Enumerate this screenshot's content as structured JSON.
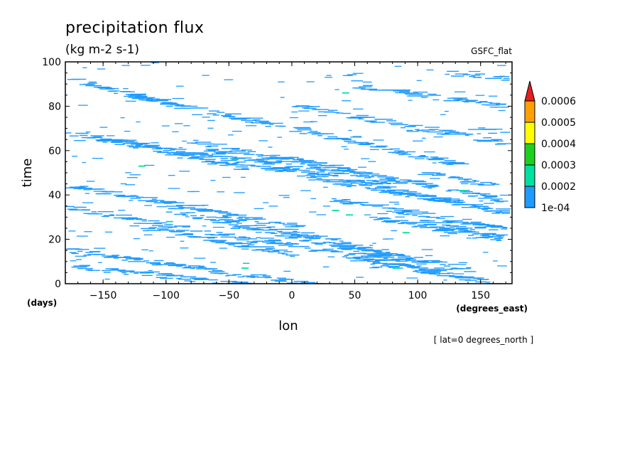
{
  "chart_data": {
    "type": "heatmap",
    "title": "precipitation flux",
    "units": "(kg m-2 s-1)",
    "model_label": "GSFC_flat",
    "xlabel": "lon",
    "x_units": "(degrees_east)",
    "ylabel": "time",
    "y_units": "(days)",
    "xlim": [
      -180,
      175
    ],
    "ylim": [
      0,
      100
    ],
    "x_ticks": [
      -150,
      -100,
      -50,
      0,
      50,
      100,
      150
    ],
    "y_ticks": [
      0,
      20,
      40,
      60,
      80,
      100
    ],
    "x_tick_labels": [
      "−150",
      "−100",
      "−50",
      "0",
      "50",
      "100",
      "150"
    ],
    "y_tick_labels": [
      "0",
      "20",
      "40",
      "60",
      "80",
      "100"
    ],
    "footnote": "[ lat=0 degrees_north ]",
    "colorbar": {
      "levels": [
        0.0001,
        0.0002,
        0.0003,
        0.0004,
        0.0005,
        0.0006
      ],
      "labels": [
        "1e-04",
        "0.0002",
        "0.0003",
        "0.0004",
        "0.0005",
        "0.0006"
      ],
      "colors": [
        "#1e9bff",
        "#00e0a0",
        "#1ed01e",
        "#ffff00",
        "#ffa000",
        "#e61e1e"
      ]
    },
    "bands": [
      {
        "lon": -180,
        "time": 92,
        "slope": -0.14,
        "len": 90,
        "color": "#1e9bff"
      },
      {
        "lon": -180,
        "time": 68,
        "slope": -0.1,
        "len": 200,
        "color": "#1e9bff"
      },
      {
        "lon": -160,
        "time": 66,
        "slope": -0.12,
        "len": 120,
        "color": "#1e9bff"
      },
      {
        "lon": -130,
        "time": 85,
        "slope": -0.12,
        "len": 260,
        "color": "#1e9bff"
      },
      {
        "lon": -80,
        "time": 64,
        "slope": -0.12,
        "len": 160,
        "color": "#1e9bff"
      },
      {
        "lon": -70,
        "time": 60,
        "slope": -0.12,
        "len": 240,
        "color": "#1e9bff"
      },
      {
        "lon": -20,
        "time": 58,
        "slope": -0.11,
        "len": 200,
        "color": "#1e9bff"
      },
      {
        "lon": 0,
        "time": 80,
        "slope": -0.1,
        "len": 175,
        "color": "#1e9bff"
      },
      {
        "lon": 50,
        "time": 89,
        "slope": -0.08,
        "len": 125,
        "color": "#1e9bff"
      },
      {
        "lon": -180,
        "time": 44,
        "slope": -0.1,
        "len": 180,
        "color": "#1e9bff"
      },
      {
        "lon": -180,
        "time": 34,
        "slope": -0.1,
        "len": 150,
        "color": "#1e9bff"
      },
      {
        "lon": -100,
        "time": 33,
        "slope": -0.12,
        "len": 200,
        "color": "#1e9bff"
      },
      {
        "lon": -180,
        "time": 15,
        "slope": -0.08,
        "len": 260,
        "color": "#1e9bff"
      },
      {
        "lon": -180,
        "time": 8,
        "slope": -0.06,
        "len": 140,
        "color": "#1e9bff"
      },
      {
        "lon": -60,
        "time": 30,
        "slope": -0.12,
        "len": 200,
        "color": "#1e9bff"
      },
      {
        "lon": 10,
        "time": 48,
        "slope": -0.1,
        "len": 165,
        "color": "#1e9bff"
      },
      {
        "lon": 30,
        "time": 38,
        "slope": -0.1,
        "len": 145,
        "color": "#1e9bff"
      },
      {
        "lon": 60,
        "time": 30,
        "slope": -0.1,
        "len": 115,
        "color": "#1e9bff"
      },
      {
        "lon": 100,
        "time": 28,
        "slope": -0.11,
        "len": 75,
        "color": "#1e9bff"
      },
      {
        "lon": -30,
        "time": 20,
        "slope": -0.1,
        "len": 150,
        "color": "#1e9bff"
      },
      {
        "lon": 40,
        "time": 12,
        "slope": -0.1,
        "len": 135,
        "color": "#1e9bff"
      },
      {
        "lon": -120,
        "time": 25,
        "slope": -0.1,
        "len": 120,
        "color": "#1e9bff"
      },
      {
        "lon": 100,
        "time": 50,
        "slope": -0.1,
        "len": 75,
        "color": "#1e9bff"
      },
      {
        "lon": 140,
        "time": 70,
        "slope": -0.1,
        "len": 35,
        "color": "#1e9bff"
      },
      {
        "lon": 120,
        "time": 95,
        "slope": -0.05,
        "len": 55,
        "color": "#1e9bff"
      }
    ],
    "hot_spots": [
      {
        "lon": -122,
        "time": 53,
        "color": "#00e0a0"
      },
      {
        "lon": -48,
        "time": 56,
        "color": "#00e0a0"
      },
      {
        "lon": 43,
        "time": 31,
        "color": "#00e0a0"
      },
      {
        "lon": 32,
        "time": 33,
        "color": "#00e0a0"
      },
      {
        "lon": 88,
        "time": 23,
        "color": "#00e0a0"
      },
      {
        "lon": 80,
        "time": 7,
        "color": "#00e0a0"
      },
      {
        "lon": -40,
        "time": 7,
        "color": "#00e0a0"
      },
      {
        "lon": -100,
        "time": 28,
        "color": "#00e0a0"
      },
      {
        "lon": 40,
        "time": 86,
        "color": "#00e0a0"
      },
      {
        "lon": 133,
        "time": 42,
        "color": "#00e0a0"
      }
    ]
  }
}
